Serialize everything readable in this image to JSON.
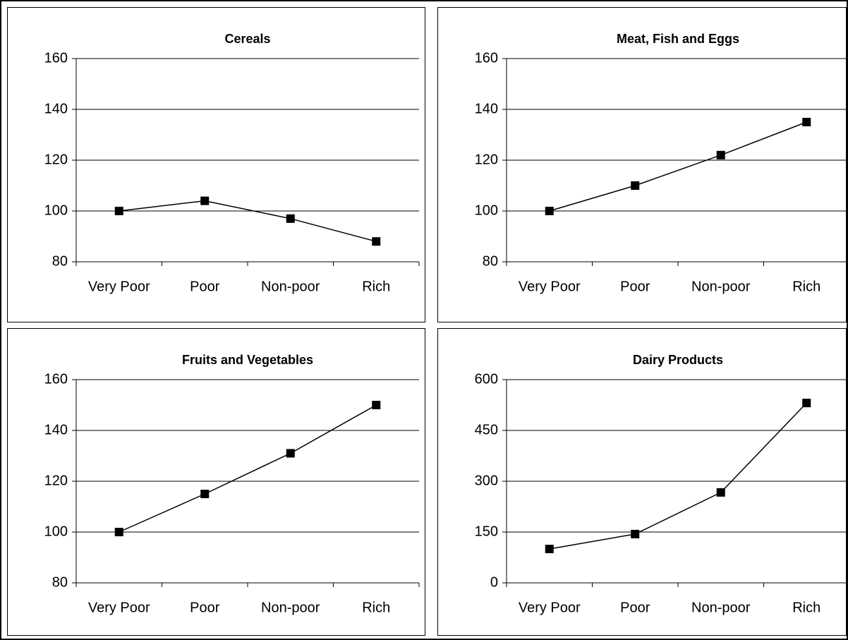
{
  "chart_data": [
    {
      "type": "line",
      "title": "Cereals",
      "categories": [
        "Very Poor",
        "Poor",
        "Non-poor",
        "Rich"
      ],
      "values": [
        100,
        104,
        97,
        88
      ],
      "color": "#000000",
      "marker": "square",
      "ylim": [
        80,
        160
      ],
      "yticks": [
        80,
        100,
        120,
        140,
        160
      ],
      "grid": true
    },
    {
      "type": "line",
      "title": "Meat, Fish and Eggs",
      "categories": [
        "Very Poor",
        "Poor",
        "Non-poor",
        "Rich"
      ],
      "values": [
        100,
        110,
        122,
        135
      ],
      "color": "#000000",
      "marker": "square",
      "ylim": [
        80,
        160
      ],
      "yticks": [
        80,
        100,
        120,
        140,
        160
      ],
      "grid": true
    },
    {
      "type": "line",
      "title": "Fruits and Vegetables",
      "categories": [
        "Very Poor",
        "Poor",
        "Non-poor",
        "Rich"
      ],
      "values": [
        100,
        115,
        131,
        150
      ],
      "color": "#000000",
      "marker": "square",
      "ylim": [
        80,
        160
      ],
      "yticks": [
        80,
        100,
        120,
        140,
        160
      ],
      "grid": true
    },
    {
      "type": "line",
      "title": "Dairy Products",
      "categories": [
        "Very Poor",
        "Poor",
        "Non-poor",
        "Rich"
      ],
      "values": [
        100,
        144,
        267,
        531
      ],
      "color": "#000000",
      "marker": "square",
      "ylim": [
        0,
        600
      ],
      "yticks": [
        0,
        150,
        300,
        450,
        600
      ],
      "grid": true
    }
  ]
}
